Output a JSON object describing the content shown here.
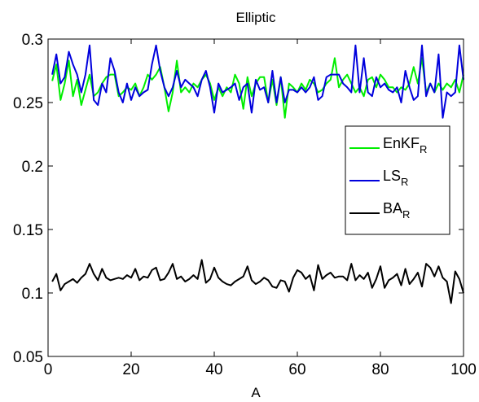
{
  "chart_data": {
    "type": "line",
    "title": "Elliptic",
    "xlabel": "A",
    "ylabel": "",
    "xlim": [
      0,
      100
    ],
    "ylim": [
      0.05,
      0.3
    ],
    "xticks": [
      0,
      20,
      40,
      60,
      80,
      100
    ],
    "yticks": [
      0.05,
      0.1,
      0.15,
      0.2,
      0.25,
      0.3
    ],
    "ytick_labels": [
      "0.05",
      "0.1",
      "0.15",
      "0.2",
      "0.25",
      "0.3"
    ],
    "grid": false,
    "legend_position": "right",
    "x": [
      1,
      2,
      3,
      4,
      5,
      6,
      7,
      8,
      9,
      10,
      11,
      12,
      13,
      14,
      15,
      16,
      17,
      18,
      19,
      20,
      21,
      22,
      23,
      24,
      25,
      26,
      27,
      28,
      29,
      30,
      31,
      32,
      33,
      34,
      35,
      36,
      37,
      38,
      39,
      40,
      41,
      42,
      43,
      44,
      45,
      46,
      47,
      48,
      49,
      50,
      51,
      52,
      53,
      54,
      55,
      56,
      57,
      58,
      59,
      60,
      61,
      62,
      63,
      64,
      65,
      66,
      67,
      68,
      69,
      70,
      71,
      72,
      73,
      74,
      75,
      76,
      77,
      78,
      79,
      80,
      81,
      82,
      83,
      84,
      85,
      86,
      87,
      88,
      89,
      90,
      91,
      92,
      93,
      94,
      95,
      96,
      97,
      98,
      99,
      100
    ],
    "series": [
      {
        "name": "EnKF",
        "subscript": "R",
        "color": "#00ee00",
        "values": [
          0.267,
          0.28,
          0.252,
          0.265,
          0.283,
          0.255,
          0.268,
          0.248,
          0.26,
          0.272,
          0.255,
          0.258,
          0.265,
          0.27,
          0.272,
          0.272,
          0.255,
          0.258,
          0.262,
          0.26,
          0.265,
          0.255,
          0.262,
          0.272,
          0.268,
          0.272,
          0.278,
          0.262,
          0.243,
          0.258,
          0.283,
          0.258,
          0.262,
          0.258,
          0.265,
          0.262,
          0.268,
          0.272,
          0.265,
          0.252,
          0.262,
          0.255,
          0.262,
          0.258,
          0.272,
          0.265,
          0.245,
          0.27,
          0.255,
          0.265,
          0.27,
          0.27,
          0.25,
          0.268,
          0.248,
          0.27,
          0.238,
          0.265,
          0.262,
          0.258,
          0.265,
          0.26,
          0.268,
          0.265,
          0.258,
          0.26,
          0.265,
          0.268,
          0.285,
          0.262,
          0.268,
          0.272,
          0.265,
          0.258,
          0.262,
          0.255,
          0.268,
          0.27,
          0.262,
          0.272,
          0.268,
          0.262,
          0.262,
          0.258,
          0.262,
          0.26,
          0.265,
          0.278,
          0.265,
          0.285,
          0.258,
          0.265,
          0.258,
          0.265,
          0.26,
          0.265,
          0.262,
          0.268,
          0.258,
          0.272
        ]
      },
      {
        "name": "LS",
        "subscript": "R",
        "color": "#0000dd",
        "values": [
          0.272,
          0.288,
          0.265,
          0.27,
          0.29,
          0.28,
          0.272,
          0.258,
          0.272,
          0.295,
          0.252,
          0.248,
          0.265,
          0.258,
          0.285,
          0.275,
          0.258,
          0.25,
          0.265,
          0.252,
          0.262,
          0.255,
          0.258,
          0.26,
          0.28,
          0.295,
          0.275,
          0.262,
          0.255,
          0.262,
          0.275,
          0.262,
          0.268,
          0.265,
          0.262,
          0.255,
          0.268,
          0.275,
          0.262,
          0.242,
          0.265,
          0.258,
          0.26,
          0.262,
          0.265,
          0.252,
          0.262,
          0.265,
          0.242,
          0.268,
          0.26,
          0.262,
          0.25,
          0.275,
          0.25,
          0.27,
          0.25,
          0.26,
          0.26,
          0.258,
          0.262,
          0.258,
          0.262,
          0.27,
          0.252,
          0.255,
          0.27,
          0.272,
          0.272,
          0.272,
          0.265,
          0.262,
          0.258,
          0.295,
          0.258,
          0.285,
          0.258,
          0.255,
          0.27,
          0.262,
          0.265,
          0.26,
          0.258,
          0.262,
          0.25,
          0.275,
          0.262,
          0.252,
          0.255,
          0.295,
          0.255,
          0.265,
          0.258,
          0.288,
          0.238,
          0.258,
          0.255,
          0.258,
          0.295,
          0.268
        ]
      },
      {
        "name": "BA",
        "subscript": "R",
        "color": "#000000",
        "values": [
          0.109,
          0.115,
          0.102,
          0.107,
          0.109,
          0.111,
          0.108,
          0.112,
          0.115,
          0.123,
          0.115,
          0.11,
          0.119,
          0.112,
          0.11,
          0.111,
          0.112,
          0.111,
          0.114,
          0.112,
          0.119,
          0.11,
          0.113,
          0.112,
          0.118,
          0.12,
          0.11,
          0.111,
          0.116,
          0.123,
          0.111,
          0.113,
          0.109,
          0.111,
          0.114,
          0.111,
          0.126,
          0.108,
          0.111,
          0.12,
          0.112,
          0.109,
          0.107,
          0.106,
          0.109,
          0.111,
          0.113,
          0.121,
          0.11,
          0.107,
          0.109,
          0.112,
          0.11,
          0.105,
          0.104,
          0.11,
          0.109,
          0.101,
          0.112,
          0.118,
          0.116,
          0.111,
          0.114,
          0.102,
          0.122,
          0.111,
          0.114,
          0.116,
          0.112,
          0.113,
          0.113,
          0.11,
          0.123,
          0.11,
          0.114,
          0.111,
          0.116,
          0.104,
          0.111,
          0.121,
          0.104,
          0.11,
          0.112,
          0.115,
          0.106,
          0.119,
          0.107,
          0.111,
          0.116,
          0.105,
          0.123,
          0.12,
          0.113,
          0.121,
          0.112,
          0.109,
          0.092,
          0.117,
          0.111,
          0.1
        ]
      }
    ]
  }
}
